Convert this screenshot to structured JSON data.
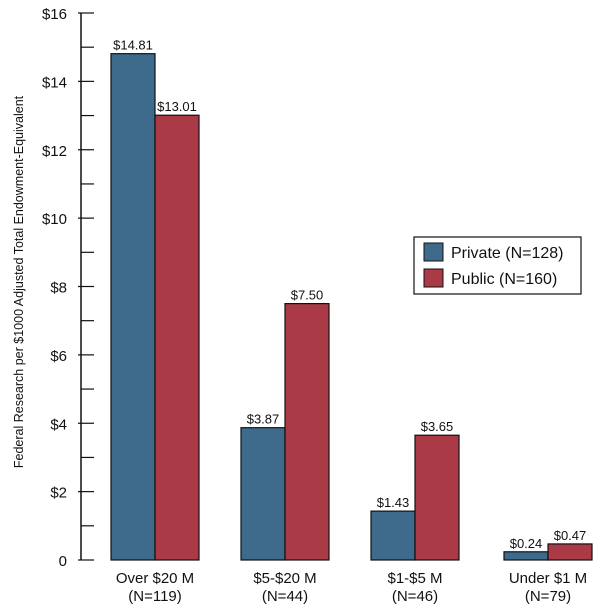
{
  "colors": {
    "private": "#3e6a8c",
    "public": "#a93a46",
    "axis": "#111111"
  },
  "chart_data": {
    "type": "bar",
    "title": "",
    "xlabel": "",
    "ylabel": "Federal Research per $1000 Adjusted Total Endowment-Equivalent",
    "ylim": [
      0,
      16
    ],
    "yticks": [
      0,
      2,
      4,
      6,
      8,
      10,
      12,
      14,
      16
    ],
    "ytick_labels": [
      "0",
      "$2",
      "$4",
      "$6",
      "$8",
      "$10",
      "$12",
      "$14",
      "$16"
    ],
    "categories": [
      [
        "Over $20 M",
        "(N=119)"
      ],
      [
        "$5-$20 M",
        "(N=44)"
      ],
      [
        "$1-$5 M",
        "(N=46)"
      ],
      [
        "Under $1 M",
        "(N=79)"
      ]
    ],
    "series": [
      {
        "name": "Private (N=128)",
        "values": [
          14.81,
          3.87,
          1.43,
          0.24
        ],
        "labels": [
          "$14.81",
          "$3.87",
          "$1.43",
          "$0.24"
        ]
      },
      {
        "name": "Public (N=160)",
        "values": [
          13.01,
          7.5,
          3.65,
          0.47
        ],
        "labels": [
          "$13.01",
          "$7.50",
          "$3.65",
          "$0.47"
        ]
      }
    ],
    "legend": "right",
    "grid": false
  }
}
